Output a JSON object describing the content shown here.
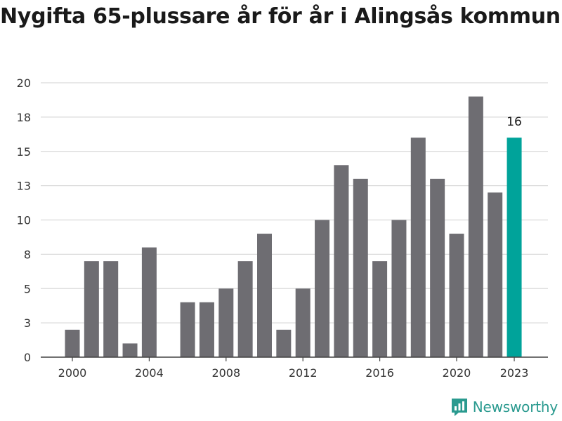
{
  "chart_data": {
    "type": "bar",
    "title": "Nygifta 65-plussare år för år i Alingsås kommun",
    "xlabel": "",
    "ylabel": "",
    "x": [
      2000,
      2001,
      2002,
      2003,
      2004,
      2005,
      2006,
      2007,
      2008,
      2009,
      2010,
      2011,
      2012,
      2013,
      2014,
      2015,
      2016,
      2017,
      2018,
      2019,
      2020,
      2021,
      2022,
      2023
    ],
    "values": [
      2,
      7,
      7,
      1,
      8,
      0,
      4,
      4,
      5,
      7,
      9,
      2,
      5,
      10,
      14,
      13,
      7,
      10,
      16,
      13,
      9,
      19,
      12,
      16
    ],
    "x_tick_labels": [
      "2000",
      "2004",
      "2008",
      "2012",
      "2016",
      "2020",
      "2023"
    ],
    "y_tick_labels": [
      "0",
      "3",
      "5",
      "8",
      "10",
      "13",
      "15",
      "18",
      "20"
    ],
    "ylim": [
      0,
      20
    ],
    "grid": "horizontal",
    "bar_color": "#6e6d72",
    "highlight_color": "#00a39a",
    "highlight_x": 2023,
    "highlight_label": "16"
  },
  "brand": {
    "name": "Newsworthy",
    "color": "#2a9a8f",
    "icon": "newsworthy-logo-icon"
  }
}
